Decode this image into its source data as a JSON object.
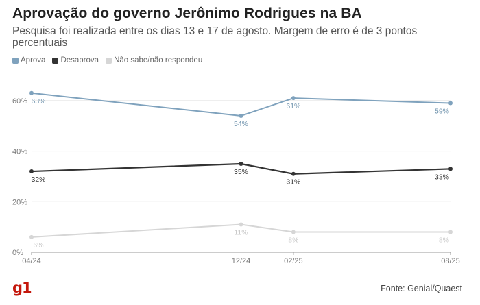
{
  "title": "Aprovação do governo Jerônimo Rodrigues na BA",
  "subtitle": "Pesquisa foi realizada entre os dias 13 e 17 de agosto. Margem de erro é de 3 pontos percentuais",
  "source": "Fonte: Genial/Quaest",
  "logo": "g1",
  "colors": {
    "aprova": "#7fa2bd",
    "desaprova": "#333333",
    "nao_sabe": "#d6d6d6",
    "grid": "#e3e3e3",
    "logo": "#c4170c"
  },
  "chart_data": {
    "type": "line",
    "title": "Aprovação do governo Jerônimo Rodrigues na BA",
    "x": [
      "2024-04",
      "2024-12",
      "2025-02",
      "2025-08"
    ],
    "tick_labels": [
      "04/24",
      "12/24",
      "02/25",
      "08/25"
    ],
    "ylim": [
      0,
      70
    ],
    "yticks": [
      "0%",
      "20%",
      "40%",
      "60%"
    ],
    "ytick_values": [
      0,
      20,
      40,
      60
    ],
    "grid": true,
    "legend_position": "top-left",
    "series": [
      {
        "name": "Aprova",
        "values": [
          63,
          54,
          61,
          59
        ],
        "labels": [
          "63%",
          "54%",
          "61%",
          "59%"
        ]
      },
      {
        "name": "Desaprova",
        "values": [
          32,
          35,
          31,
          33
        ],
        "labels": [
          "32%",
          "35%",
          "31%",
          "33%"
        ]
      },
      {
        "name": "Não sabe/não respondeu",
        "values": [
          6,
          11,
          8,
          8
        ],
        "labels": [
          "6%",
          "11%",
          "8%",
          "8%"
        ]
      }
    ]
  }
}
